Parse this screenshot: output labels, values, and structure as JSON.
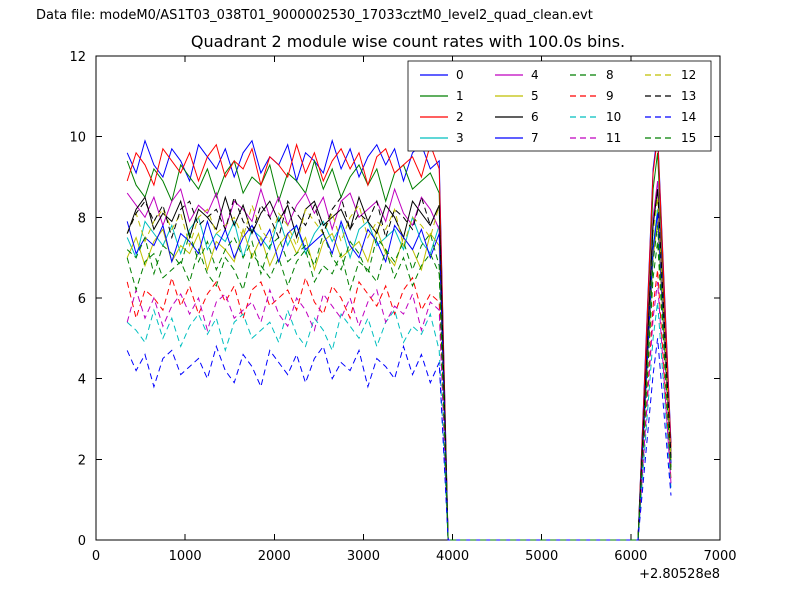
{
  "header": {
    "label": "Data file: modeM0/AS1T03_038T01_9000002530_17033cztM0_level2_quad_clean.evt"
  },
  "chart_data": {
    "type": "line",
    "title": "Quadrant 2 module wise count rates with 100.0s bins.",
    "xlabel": "",
    "ylabel": "",
    "xlim": [
      0,
      7000
    ],
    "ylim": [
      0,
      12
    ],
    "xticks": [
      0,
      1000,
      2000,
      3000,
      4000,
      5000,
      6000,
      7000
    ],
    "yticks": [
      0,
      2,
      4,
      6,
      8,
      10,
      12
    ],
    "x_offset_text": "+2.80528e8",
    "grid": false,
    "legend_position": "upper center-right",
    "legend_columns": 4,
    "x": [
      350,
      450,
      550,
      650,
      750,
      850,
      950,
      1050,
      1150,
      1250,
      1350,
      1450,
      1550,
      1650,
      1750,
      1850,
      1950,
      2050,
      2150,
      2250,
      2350,
      2450,
      2550,
      2650,
      2750,
      2850,
      2950,
      3050,
      3150,
      3250,
      3350,
      3450,
      3550,
      3650,
      3750,
      3850,
      3950,
      4200,
      4600,
      5000,
      5400,
      5800,
      6080,
      6150,
      6250,
      6300,
      6450
    ],
    "series": [
      {
        "name": "0",
        "color": "#0000ff",
        "linestyle": "solid",
        "values": [
          9.6,
          9.1,
          9.9,
          9.3,
          9.0,
          9.7,
          9.4,
          8.9,
          9.8,
          9.5,
          9.2,
          9.7,
          9.0,
          9.6,
          9.9,
          9.1,
          9.5,
          9.3,
          9.8,
          8.9,
          9.6,
          9.4,
          9.1,
          9.9,
          9.2,
          9.7,
          9.0,
          9.5,
          9.8,
          9.3,
          9.7,
          8.9,
          9.6,
          9.8,
          9.2,
          9.4,
          0,
          0,
          0,
          0,
          0,
          0,
          0,
          3.8,
          9.2,
          10.1,
          2.4
        ]
      },
      {
        "name": "1",
        "color": "#007f00",
        "linestyle": "solid",
        "values": [
          9.4,
          8.8,
          8.5,
          9.2,
          8.9,
          8.4,
          9.3,
          9.0,
          8.7,
          9.2,
          8.5,
          9.1,
          9.4,
          8.6,
          9.0,
          8.8,
          9.3,
          8.4,
          9.1,
          8.9,
          8.6,
          9.4,
          8.7,
          9.2,
          8.5,
          9.0,
          9.3,
          8.8,
          9.2,
          8.4,
          9.1,
          9.3,
          8.7,
          8.9,
          9.1,
          8.6,
          0,
          0,
          0,
          0,
          0,
          0,
          0,
          3.6,
          8.7,
          9.6,
          2.2
        ]
      },
      {
        "name": "2",
        "color": "#ff0000",
        "linestyle": "solid",
        "values": [
          8.9,
          9.6,
          9.3,
          8.8,
          9.7,
          9.4,
          9.1,
          9.6,
          8.9,
          9.5,
          9.8,
          9.0,
          9.4,
          9.2,
          9.7,
          8.8,
          9.5,
          9.3,
          9.0,
          9.8,
          9.1,
          9.6,
          8.9,
          9.4,
          9.7,
          9.2,
          9.6,
          8.8,
          9.5,
          9.7,
          9.1,
          9.3,
          9.5,
          9.0,
          9.8,
          9.2,
          0,
          0,
          0,
          0,
          0,
          0,
          0,
          3.7,
          9.1,
          10.0,
          2.3
        ]
      },
      {
        "name": "3",
        "color": "#00bfbf",
        "linestyle": "solid",
        "values": [
          7.5,
          7.0,
          7.9,
          7.6,
          7.3,
          7.8,
          7.1,
          7.7,
          8.0,
          7.2,
          7.6,
          7.4,
          7.9,
          7.0,
          7.7,
          7.5,
          7.2,
          8.0,
          7.3,
          7.8,
          7.1,
          7.6,
          7.9,
          7.4,
          7.8,
          7.0,
          7.7,
          7.9,
          7.3,
          7.5,
          7.7,
          7.2,
          8.0,
          7.4,
          7.1,
          7.8,
          0,
          0,
          0,
          0,
          0,
          0,
          0,
          3.0,
          7.3,
          8.2,
          1.9
        ]
      },
      {
        "name": "4",
        "color": "#bf00bf",
        "linestyle": "solid",
        "values": [
          8.6,
          8.3,
          8.0,
          8.5,
          7.8,
          8.4,
          8.7,
          7.9,
          8.3,
          8.1,
          8.6,
          7.7,
          8.4,
          8.2,
          7.9,
          8.7,
          8.0,
          8.5,
          7.8,
          8.3,
          8.6,
          8.1,
          8.5,
          7.7,
          8.4,
          8.6,
          8.0,
          8.2,
          8.4,
          7.9,
          8.7,
          8.1,
          7.8,
          8.5,
          8.2,
          7.7,
          0,
          0,
          0,
          0,
          0,
          0,
          0,
          3.3,
          8.0,
          8.9,
          2.1
        ]
      },
      {
        "name": "5",
        "color": "#bfbf00",
        "linestyle": "solid",
        "values": [
          7.0,
          7.5,
          6.8,
          7.4,
          7.7,
          6.9,
          7.3,
          7.1,
          7.6,
          6.7,
          7.4,
          7.2,
          6.9,
          7.7,
          7.0,
          7.5,
          6.8,
          7.3,
          7.6,
          7.1,
          7.5,
          6.7,
          7.4,
          7.6,
          7.0,
          7.2,
          7.4,
          6.9,
          7.7,
          7.1,
          6.8,
          7.5,
          7.2,
          6.7,
          7.6,
          7.3,
          0,
          0,
          0,
          0,
          0,
          0,
          0,
          2.9,
          7.0,
          7.9,
          1.8
        ]
      },
      {
        "name": "6",
        "color": "#000000",
        "linestyle": "solid",
        "values": [
          7.6,
          8.2,
          8.5,
          7.7,
          8.1,
          7.9,
          8.4,
          7.5,
          8.2,
          8.0,
          7.7,
          8.5,
          7.8,
          8.3,
          7.6,
          8.1,
          8.4,
          7.9,
          8.3,
          7.5,
          8.2,
          8.4,
          7.8,
          8.0,
          8.2,
          7.7,
          8.5,
          7.9,
          7.6,
          8.3,
          8.0,
          7.5,
          8.4,
          8.1,
          7.8,
          8.3,
          0,
          0,
          0,
          0,
          0,
          0,
          0,
          3.2,
          7.8,
          8.7,
          2.0
        ]
      },
      {
        "name": "7",
        "color": "#0000ff",
        "linestyle": "solid",
        "values": [
          7.9,
          7.1,
          7.5,
          7.3,
          7.8,
          6.9,
          7.6,
          7.4,
          7.1,
          7.9,
          7.2,
          7.7,
          7.0,
          7.5,
          7.8,
          7.3,
          7.7,
          6.9,
          7.6,
          7.8,
          7.2,
          7.4,
          7.6,
          7.1,
          7.9,
          7.3,
          7.0,
          7.7,
          7.4,
          6.9,
          7.8,
          7.5,
          7.2,
          7.7,
          7.0,
          7.6,
          0,
          0,
          0,
          0,
          0,
          0,
          0,
          3.0,
          7.2,
          8.1,
          1.9
        ]
      },
      {
        "name": "8",
        "color": "#007f00",
        "linestyle": "dashed",
        "values": [
          7.2,
          7.0,
          7.5,
          6.6,
          7.3,
          7.1,
          6.8,
          7.6,
          6.9,
          7.4,
          6.7,
          7.2,
          7.5,
          7.0,
          7.4,
          6.6,
          7.3,
          7.5,
          6.9,
          7.1,
          7.3,
          6.8,
          7.6,
          7.0,
          6.7,
          7.4,
          7.1,
          6.6,
          7.5,
          7.2,
          6.9,
          7.4,
          6.7,
          7.3,
          7.6,
          6.8,
          0,
          0,
          0,
          0,
          0,
          0,
          0,
          2.8,
          6.9,
          7.8,
          1.8
        ]
      },
      {
        "name": "9",
        "color": "#ff0000",
        "linestyle": "dashed",
        "values": [
          6.4,
          5.5,
          6.2,
          6.0,
          5.7,
          6.5,
          5.8,
          6.3,
          5.6,
          6.1,
          6.4,
          5.9,
          6.3,
          5.5,
          6.2,
          6.4,
          5.8,
          6.0,
          6.2,
          5.7,
          6.5,
          5.9,
          5.6,
          6.3,
          6.0,
          5.5,
          6.4,
          6.1,
          5.8,
          6.3,
          5.6,
          6.2,
          6.5,
          5.7,
          6.1,
          5.9,
          0,
          0,
          0,
          0,
          0,
          0,
          0,
          2.4,
          5.8,
          6.7,
          1.5
        ]
      },
      {
        "name": "10",
        "color": "#00bfbf",
        "linestyle": "dashed",
        "values": [
          5.4,
          5.2,
          4.9,
          5.7,
          5.0,
          5.5,
          4.8,
          5.3,
          5.6,
          5.1,
          5.5,
          4.7,
          5.4,
          5.6,
          5.0,
          5.2,
          5.4,
          4.9,
          5.7,
          5.1,
          4.8,
          5.5,
          5.2,
          4.7,
          5.6,
          5.3,
          5.0,
          5.5,
          4.8,
          5.4,
          5.7,
          4.9,
          5.3,
          5.1,
          5.6,
          4.7,
          0,
          0,
          0,
          0,
          0,
          0,
          0,
          2.1,
          5.0,
          5.9,
          1.3
        ]
      },
      {
        "name": "11",
        "color": "#bf00bf",
        "linestyle": "dashed",
        "values": [
          5.4,
          6.2,
          5.5,
          6.0,
          5.3,
          5.8,
          6.1,
          5.6,
          6.0,
          5.2,
          5.9,
          6.1,
          5.5,
          5.7,
          5.9,
          5.4,
          6.2,
          5.6,
          5.3,
          6.0,
          5.7,
          5.2,
          6.1,
          5.8,
          5.5,
          6.0,
          5.3,
          5.9,
          6.2,
          5.4,
          5.8,
          5.6,
          6.1,
          5.2,
          5.9,
          5.7,
          0,
          0,
          0,
          0,
          0,
          0,
          0,
          2.3,
          5.5,
          6.4,
          1.4
        ]
      },
      {
        "name": "12",
        "color": "#bfbf00",
        "linestyle": "dashed",
        "values": [
          7.6,
          8.1,
          7.4,
          7.9,
          8.2,
          7.7,
          8.1,
          7.3,
          8.0,
          8.2,
          7.6,
          7.8,
          8.0,
          7.5,
          8.3,
          7.7,
          7.4,
          8.1,
          7.8,
          7.3,
          8.2,
          7.9,
          7.6,
          8.1,
          7.4,
          8.0,
          8.3,
          7.5,
          7.9,
          7.7,
          8.2,
          7.3,
          8.0,
          7.8,
          7.5,
          8.3,
          0,
          0,
          0,
          0,
          0,
          0,
          0,
          3.1,
          7.6,
          8.5,
          2.0
        ]
      },
      {
        "name": "13",
        "color": "#000000",
        "linestyle": "dashed",
        "values": [
          7.6,
          8.1,
          8.4,
          7.9,
          8.3,
          7.5,
          8.2,
          8.4,
          7.8,
          8.0,
          8.2,
          7.7,
          8.5,
          7.9,
          7.6,
          8.3,
          8.0,
          7.5,
          8.4,
          8.1,
          7.8,
          8.3,
          7.6,
          8.2,
          8.5,
          7.7,
          8.1,
          7.9,
          8.4,
          7.5,
          8.2,
          8.0,
          7.7,
          8.5,
          7.8,
          8.3,
          0,
          0,
          0,
          0,
          0,
          0,
          0,
          3.2,
          7.8,
          8.7,
          2.0
        ]
      },
      {
        "name": "14",
        "color": "#0000ff",
        "linestyle": "dashed",
        "values": [
          4.7,
          4.2,
          4.6,
          3.8,
          4.5,
          4.7,
          4.1,
          4.3,
          4.5,
          4.0,
          4.8,
          4.2,
          3.9,
          4.6,
          4.3,
          3.8,
          4.7,
          4.4,
          4.1,
          4.6,
          3.9,
          4.5,
          4.8,
          4.0,
          4.4,
          4.2,
          4.7,
          3.8,
          4.5,
          4.3,
          4.0,
          4.8,
          4.1,
          4.6,
          3.9,
          4.4,
          0,
          0,
          0,
          0,
          0,
          0,
          0,
          1.7,
          4.1,
          5.0,
          1.1
        ]
      },
      {
        "name": "15",
        "color": "#007f00",
        "linestyle": "dashed",
        "values": [
          7.0,
          6.2,
          6.9,
          7.1,
          6.5,
          6.7,
          6.9,
          6.4,
          7.2,
          6.6,
          6.3,
          7.0,
          6.7,
          6.2,
          7.1,
          6.8,
          6.5,
          7.0,
          6.3,
          6.9,
          7.2,
          6.4,
          6.8,
          6.6,
          7.1,
          6.2,
          6.9,
          6.7,
          6.4,
          7.2,
          6.5,
          7.0,
          6.3,
          6.8,
          7.1,
          6.6,
          0,
          0,
          0,
          0,
          0,
          0,
          0,
          2.7,
          6.5,
          7.4,
          1.7
        ]
      }
    ]
  }
}
